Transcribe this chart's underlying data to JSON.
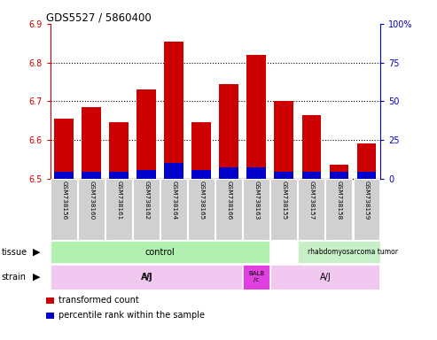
{
  "title": "GDS5527 / 5860400",
  "samples": [
    "GSM738156",
    "GSM738160",
    "GSM738161",
    "GSM738162",
    "GSM738164",
    "GSM738165",
    "GSM738166",
    "GSM738163",
    "GSM738155",
    "GSM738157",
    "GSM738158",
    "GSM738159"
  ],
  "red_values": [
    6.655,
    6.685,
    6.645,
    6.73,
    6.855,
    6.645,
    6.745,
    6.82,
    6.7,
    6.665,
    6.535,
    6.59
  ],
  "blue_values": [
    0.018,
    0.018,
    0.018,
    0.022,
    0.04,
    0.022,
    0.028,
    0.028,
    0.018,
    0.018,
    0.018,
    0.018
  ],
  "base": 6.5,
  "ylim_left": [
    6.5,
    6.9
  ],
  "ylim_right": [
    0,
    100
  ],
  "yticks_left": [
    6.5,
    6.6,
    6.7,
    6.8,
    6.9
  ],
  "yticks_right": [
    0,
    25,
    50,
    75,
    100
  ],
  "ytick_labels_right": [
    "0",
    "25",
    "50",
    "75",
    "100%"
  ],
  "bar_color_red": "#CC0000",
  "bar_color_blue": "#0000CC",
  "bar_width": 0.7,
  "tick_color_left": "#CC0000",
  "tick_color_right": "#0000CC",
  "tissue_row_color_control": "#b2f0b2",
  "tissue_row_color_tumor": "#c8f0c8",
  "strain_row_color_aj": "#f0c8f0",
  "strain_row_color_balb": "#e040e0",
  "label_box_color": "#d0d0d0",
  "n_control": 8,
  "n_balb": 1,
  "n_tumor": 4
}
